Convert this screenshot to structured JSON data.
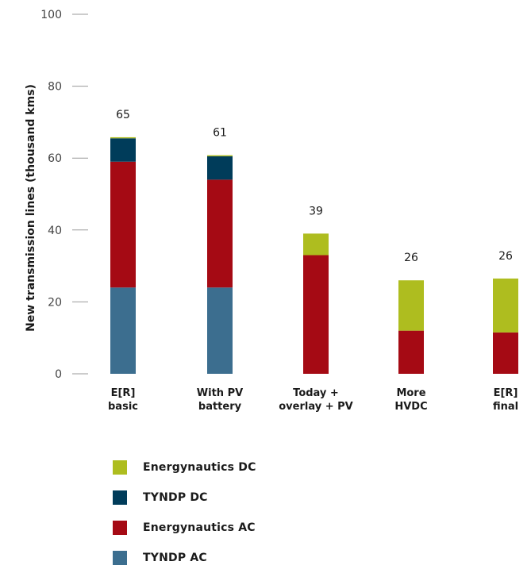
{
  "chart_data": {
    "type": "bar",
    "stacked": true,
    "ylabel": "New transmission lines (thousand kms)",
    "ylim": [
      0,
      100
    ],
    "yticks": [
      0,
      20,
      40,
      60,
      80,
      100
    ],
    "categories": [
      [
        "E[R]",
        "basic"
      ],
      [
        "With PV",
        "battery"
      ],
      [
        "Today +",
        "overlay + PV"
      ],
      [
        "More",
        "HVDC"
      ],
      [
        "E[R]",
        "final"
      ]
    ],
    "totals": [
      "65",
      "61",
      "39",
      "26",
      "26"
    ],
    "series": [
      {
        "name": "TYNDP AC",
        "color": "#3c6e8f",
        "values": [
          24,
          24,
          0,
          0,
          0
        ]
      },
      {
        "name": "Energynautics AC",
        "color": "#a50a14",
        "values": [
          35,
          30,
          33,
          12,
          11.5
        ]
      },
      {
        "name": "TYNDP DC",
        "color": "#003c5a",
        "values": [
          6.5,
          6.5,
          0,
          0,
          0
        ]
      },
      {
        "name": "Energynautics DC",
        "color": "#aebd1f",
        "values": [
          0.3,
          0.3,
          6,
          14,
          15
        ]
      }
    ],
    "legend_order": [
      "Energynautics DC",
      "TYNDP DC",
      "Energynautics AC",
      "TYNDP AC"
    ],
    "grid": false,
    "legend_position": "bottom-left"
  }
}
